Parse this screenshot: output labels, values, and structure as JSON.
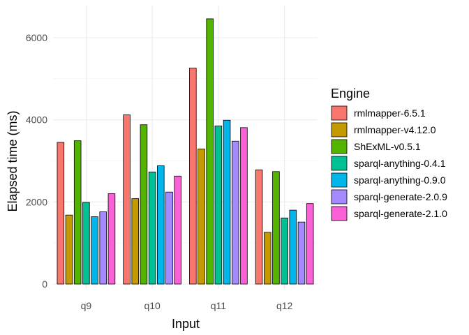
{
  "chart_data": {
    "type": "bar",
    "title": "",
    "xlabel": "Input",
    "ylabel": "Elapsed time (ms)",
    "categories": [
      "q9",
      "q10",
      "q11",
      "q12"
    ],
    "ylim": [
      0,
      6700
    ],
    "yticks": [
      0,
      2000,
      4000,
      6000
    ],
    "yticks_labels": [
      "0",
      "2000",
      "4000",
      "6000"
    ],
    "grid": true,
    "legend_title": "Engine",
    "legend_position": "right",
    "series": [
      {
        "name": "rmlmapper-6.5.1",
        "color": "#F8766D",
        "values": [
          3450,
          4120,
          5260,
          2780
        ]
      },
      {
        "name": "rmlmapper-v4.12.0",
        "color": "#C49A00",
        "values": [
          1680,
          2080,
          3290,
          1260
        ]
      },
      {
        "name": "ShExML-v0.5.1",
        "color": "#53B400",
        "values": [
          3490,
          3880,
          6460,
          2740
        ]
      },
      {
        "name": "sparql-anything-0.4.1",
        "color": "#00C094",
        "values": [
          1990,
          2730,
          3850,
          1610
        ]
      },
      {
        "name": "sparql-anything-0.9.0",
        "color": "#00B6EB",
        "values": [
          1640,
          2880,
          3990,
          1800
        ]
      },
      {
        "name": "sparql-generate-2.0.9",
        "color": "#A58AFF",
        "values": [
          1760,
          2240,
          3480,
          1510
        ]
      },
      {
        "name": "sparql-generate-2.1.0",
        "color": "#FB61D7",
        "values": [
          2200,
          2630,
          3810,
          1960
        ]
      }
    ]
  }
}
